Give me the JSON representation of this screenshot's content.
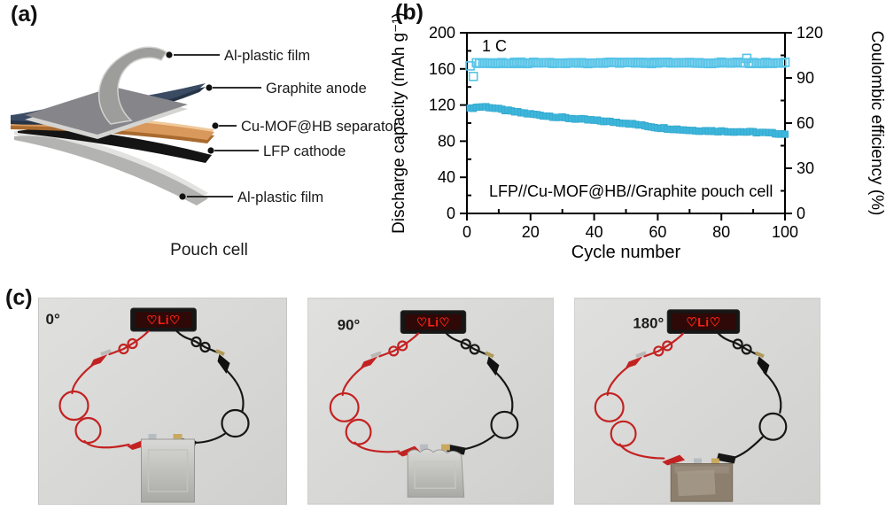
{
  "panel_a": {
    "label": "(a)",
    "caption": "Pouch cell",
    "layer_labels": [
      "Al-plastic film",
      "Graphite anode",
      "Cu-MOF@HB separator",
      "LFP cathode",
      "Al-plastic film"
    ],
    "layer_colors": {
      "al_plastic_top": "#9d9d9b",
      "graphite_anode": "#3a4b63",
      "separator": "#d9995c",
      "lfp_cathode": "#141414",
      "al_plastic_bottom": "#b3b3b1"
    }
  },
  "panel_b": {
    "label": "(b)"
  },
  "panel_c": {
    "label": "(c)",
    "photos": [
      {
        "angle": "0°",
        "led_text": "♡Li♡"
      },
      {
        "angle": "90°",
        "led_text": "♡Li♡"
      },
      {
        "angle": "180°",
        "led_text": "♡Li♡"
      }
    ],
    "led_color": "#ff2015",
    "wire_red": "#c32222",
    "wire_black": "#161616"
  },
  "chart_data": {
    "type": "scatter",
    "xlabel": "Cycle number",
    "ylabel_left": "Discharge capacity (mAh g⁻¹)",
    "ylabel_right": "Coulombic efficiency (%)",
    "xlim": [
      0,
      100
    ],
    "ylim_left": [
      0,
      200
    ],
    "ylim_right": [
      0,
      120
    ],
    "xticks": [
      0,
      20,
      40,
      60,
      80,
      100
    ],
    "yticks_left": [
      0,
      40,
      80,
      120,
      160,
      200
    ],
    "yticks_right": [
      0,
      30,
      60,
      90,
      120
    ],
    "x_minor_step": 10,
    "y_left_minor_step": 20,
    "y_right_minor_step": 15,
    "grid": false,
    "frame": true,
    "annotation_rate": "1 C",
    "annotation_cell": "LFP//Cu-MOF@HB//Graphite pouch cell",
    "cycles": [
      1,
      100
    ],
    "series": [
      {
        "name": "Discharge capacity",
        "axis": "left",
        "marker": "filled-square",
        "color": "#3eb6db",
        "keypoints_x": [
          1,
          2,
          4,
          6,
          8,
          10,
          14,
          20,
          25,
          30,
          35,
          40,
          45,
          50,
          55,
          60,
          65,
          70,
          75,
          80,
          85,
          90,
          95,
          100
        ],
        "keypoints_y": [
          116,
          117,
          118,
          118,
          117,
          115.5,
          113,
          110,
          108,
          106,
          104.5,
          103,
          101.5,
          100,
          97.5,
          95,
          93.5,
          92,
          91.5,
          91,
          90.5,
          90,
          89,
          88
        ]
      },
      {
        "name": "Coulombic efficiency",
        "axis": "right",
        "marker": "open-square",
        "color": "#56c3e7",
        "baseline": 100,
        "specials": [
          [
            1,
            98
          ],
          [
            2,
            91
          ],
          [
            88,
            103
          ]
        ]
      }
    ]
  }
}
